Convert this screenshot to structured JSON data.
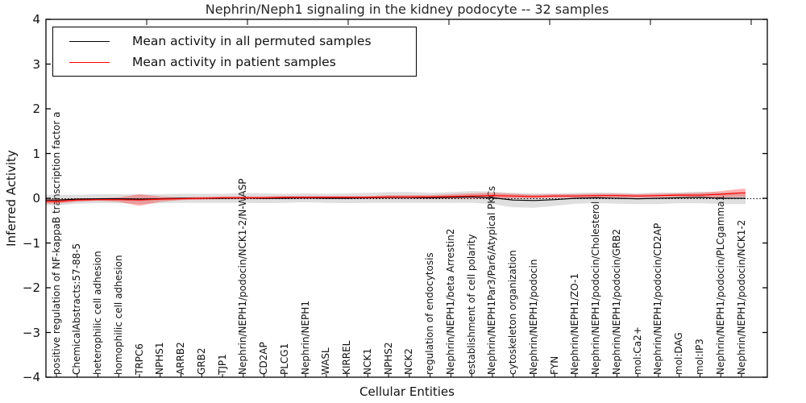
{
  "chart_data": {
    "type": "line",
    "title": "Nephrin/Neph1 signaling in the kidney podocyte -- 32 samples",
    "xlabel": "Cellular Entities",
    "ylabel": "Inferred Activity",
    "ylim": [
      -4,
      4
    ],
    "yticks": [
      4,
      3,
      2,
      1,
      0,
      -1,
      -2,
      -3,
      -4
    ],
    "grid": false,
    "legend_position": "upper left",
    "zero_line_style": "dotted",
    "categories": [
      "positive regulation of NF-kappaB transcription factor a",
      "ChemicalAbstracts:57-88-5",
      "heterophilic cell adhesion",
      "homophilic cell adhesion",
      "TRPC6",
      "NPHS1",
      "ARRB2",
      "GRB2",
      "TJP1",
      "Nephrin/NEPH1/podocin/NCK1-2/N-WASP",
      "CD2AP",
      "PLCG1",
      "Nephrin/NEPH1",
      "WASL",
      "KIRREL",
      "NCK1",
      "NPHS2",
      "NCK2",
      "regulation of endocytosis",
      "Nephrin/NEPH1/beta Arrestin2",
      "establishment of cell polarity",
      "Nephrin/NEPH1Par3/Par6/Atypical PKCs",
      "cytoskeleton organization",
      "Nephrin/NEPH1/podocin",
      "FYN",
      "Nephrin/NEPH1/ZO-1",
      "Nephrin/NEPH1/podocin/Cholesterol",
      "Nephrin/NEPH1/podocin/GRB2",
      "mol:Ca2+",
      "Nephrin/NEPH1/podocin/CD2AP",
      "mol:DAG",
      "mol:IP3",
      "Nephrin/NEPH1/podocin/PLCgamma1",
      "Nephrin/NEPH1/podocin/NCK1-2"
    ],
    "series": [
      {
        "name": "Mean activity in all permuted samples",
        "color": "#000000",
        "band_color": "rgba(128,128,128,0.25)",
        "values": [
          -0.04,
          -0.02,
          -0.01,
          -0.01,
          -0.02,
          -0.01,
          0.0,
          0.0,
          0.0,
          0.01,
          0.0,
          0.0,
          0.01,
          0.0,
          0.0,
          0.01,
          0.02,
          0.02,
          0.01,
          0.02,
          0.03,
          0.01,
          -0.04,
          -0.05,
          -0.03,
          0.0,
          0.01,
          0.0,
          -0.01,
          0.0,
          0.01,
          0.02,
          0.0,
          0.0
        ],
        "band_halfwidth": [
          0.12,
          0.1,
          0.1,
          0.1,
          0.11,
          0.1,
          0.1,
          0.1,
          0.1,
          0.11,
          0.11,
          0.1,
          0.1,
          0.1,
          0.11,
          0.11,
          0.12,
          0.12,
          0.11,
          0.12,
          0.13,
          0.14,
          0.16,
          0.16,
          0.14,
          0.12,
          0.12,
          0.12,
          0.12,
          0.13,
          0.12,
          0.13,
          0.13,
          0.13
        ]
      },
      {
        "name": "Mean activity in patient samples",
        "color": "#ff0000",
        "band_color": "rgba(255,0,0,0.30)",
        "values": [
          -0.07,
          -0.04,
          -0.03,
          -0.03,
          -0.04,
          -0.02,
          -0.01,
          0.0,
          0.01,
          0.01,
          0.01,
          0.02,
          0.02,
          0.02,
          0.02,
          0.02,
          0.03,
          0.03,
          0.03,
          0.04,
          0.05,
          0.06,
          0.05,
          0.04,
          0.05,
          0.05,
          0.06,
          0.06,
          0.05,
          0.06,
          0.07,
          0.07,
          0.09,
          0.12
        ],
        "band_halfwidth": [
          0.05,
          0.04,
          0.03,
          0.05,
          0.13,
          0.06,
          0.03,
          0.03,
          0.03,
          0.03,
          0.03,
          0.03,
          0.03,
          0.03,
          0.03,
          0.03,
          0.04,
          0.04,
          0.04,
          0.05,
          0.06,
          0.06,
          0.05,
          0.04,
          0.04,
          0.04,
          0.04,
          0.04,
          0.04,
          0.04,
          0.04,
          0.05,
          0.07,
          0.09
        ]
      }
    ]
  }
}
